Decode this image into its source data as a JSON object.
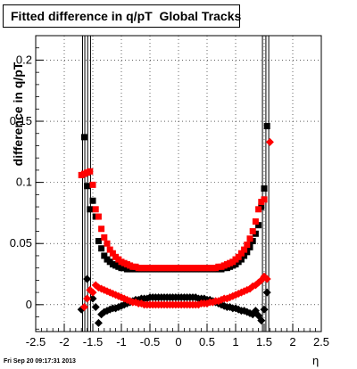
{
  "chart_data": {
    "type": "scatter",
    "title": "Fitted difference in q/pT  Global Tracks",
    "xlabel": "η",
    "ylabel": "difference in q/pT",
    "xlim": [
      -2.5,
      2.5
    ],
    "ylim": [
      -0.022,
      0.22
    ],
    "xticks": [
      "-2.5",
      "-2",
      "-1.5",
      "-1",
      "-0.5",
      "0",
      "0.5",
      "1",
      "1.5",
      "2",
      "2.5"
    ],
    "yticks": [
      "0",
      "0.05",
      "0.1",
      "0.15",
      "0.2"
    ],
    "grid": true,
    "series": [
      {
        "marker": "square",
        "color": "#000000",
        "points": [
          [
            -1.65,
            0.137
          ],
          [
            -1.6,
            0.097
          ],
          [
            -1.55,
            0.078
          ],
          [
            -1.5,
            0.085
          ],
          [
            -1.45,
            0.072
          ],
          [
            -1.4,
            0.052
          ],
          [
            -1.35,
            0.046
          ],
          [
            -1.3,
            0.04
          ],
          [
            -1.25,
            0.037
          ],
          [
            -1.2,
            0.035
          ],
          [
            -1.15,
            0.033
          ],
          [
            -1.1,
            0.032
          ],
          [
            -1.05,
            0.031
          ],
          [
            -1.0,
            0.03
          ],
          [
            -0.95,
            0.03
          ],
          [
            -0.9,
            0.029
          ],
          [
            -0.85,
            0.029
          ],
          [
            -0.8,
            0.029
          ],
          [
            -0.75,
            0.029
          ],
          [
            -0.7,
            0.029
          ],
          [
            -0.65,
            0.029
          ],
          [
            -0.6,
            0.029
          ],
          [
            -0.55,
            0.029
          ],
          [
            -0.5,
            0.029
          ],
          [
            -0.45,
            0.029
          ],
          [
            -0.4,
            0.029
          ],
          [
            -0.35,
            0.029
          ],
          [
            -0.3,
            0.029
          ],
          [
            -0.25,
            0.029
          ],
          [
            -0.2,
            0.029
          ],
          [
            -0.15,
            0.029
          ],
          [
            -0.1,
            0.029
          ],
          [
            -0.05,
            0.029
          ],
          [
            0.0,
            0.029
          ],
          [
            0.05,
            0.029
          ],
          [
            0.1,
            0.029
          ],
          [
            0.15,
            0.029
          ],
          [
            0.2,
            0.029
          ],
          [
            0.25,
            0.029
          ],
          [
            0.3,
            0.029
          ],
          [
            0.35,
            0.029
          ],
          [
            0.4,
            0.029
          ],
          [
            0.45,
            0.029
          ],
          [
            0.5,
            0.029
          ],
          [
            0.55,
            0.029
          ],
          [
            0.6,
            0.029
          ],
          [
            0.65,
            0.029
          ],
          [
            0.7,
            0.029
          ],
          [
            0.75,
            0.029
          ],
          [
            0.8,
            0.03
          ],
          [
            0.85,
            0.03
          ],
          [
            0.9,
            0.031
          ],
          [
            0.95,
            0.032
          ],
          [
            1.0,
            0.033
          ],
          [
            1.05,
            0.035
          ],
          [
            1.1,
            0.037
          ],
          [
            1.15,
            0.04
          ],
          [
            1.2,
            0.043
          ],
          [
            1.25,
            0.047
          ],
          [
            1.3,
            0.052
          ],
          [
            1.35,
            0.058
          ],
          [
            1.4,
            0.065
          ],
          [
            1.45,
            0.08
          ],
          [
            1.5,
            0.095
          ],
          [
            1.55,
            0.146
          ]
        ]
      },
      {
        "marker": "square",
        "color": "#ff0000",
        "points": [
          [
            -1.7,
            0.106
          ],
          [
            -1.65,
            0.107
          ],
          [
            -1.6,
            0.108
          ],
          [
            -1.55,
            0.109
          ],
          [
            -1.5,
            0.098
          ],
          [
            -1.45,
            0.078
          ],
          [
            -1.4,
            0.072
          ],
          [
            -1.35,
            0.062
          ],
          [
            -1.3,
            0.055
          ],
          [
            -1.25,
            0.05
          ],
          [
            -1.2,
            0.045
          ],
          [
            -1.15,
            0.042
          ],
          [
            -1.1,
            0.039
          ],
          [
            -1.05,
            0.037
          ],
          [
            -1.0,
            0.035
          ],
          [
            -0.95,
            0.034
          ],
          [
            -0.9,
            0.033
          ],
          [
            -0.85,
            0.032
          ],
          [
            -0.8,
            0.031
          ],
          [
            -0.75,
            0.031
          ],
          [
            -0.7,
            0.03
          ],
          [
            -0.65,
            0.03
          ],
          [
            -0.6,
            0.03
          ],
          [
            -0.55,
            0.03
          ],
          [
            -0.5,
            0.03
          ],
          [
            -0.45,
            0.03
          ],
          [
            -0.4,
            0.03
          ],
          [
            -0.35,
            0.03
          ],
          [
            -0.3,
            0.03
          ],
          [
            -0.25,
            0.03
          ],
          [
            -0.2,
            0.03
          ],
          [
            -0.15,
            0.03
          ],
          [
            -0.1,
            0.03
          ],
          [
            -0.05,
            0.03
          ],
          [
            0.0,
            0.03
          ],
          [
            0.05,
            0.03
          ],
          [
            0.1,
            0.03
          ],
          [
            0.15,
            0.03
          ],
          [
            0.2,
            0.03
          ],
          [
            0.25,
            0.03
          ],
          [
            0.3,
            0.03
          ],
          [
            0.35,
            0.03
          ],
          [
            0.4,
            0.03
          ],
          [
            0.45,
            0.03
          ],
          [
            0.5,
            0.03
          ],
          [
            0.55,
            0.03
          ],
          [
            0.6,
            0.03
          ],
          [
            0.65,
            0.03
          ],
          [
            0.7,
            0.031
          ],
          [
            0.75,
            0.031
          ],
          [
            0.8,
            0.032
          ],
          [
            0.85,
            0.033
          ],
          [
            0.9,
            0.034
          ],
          [
            0.95,
            0.035
          ],
          [
            1.0,
            0.037
          ],
          [
            1.05,
            0.039
          ],
          [
            1.1,
            0.042
          ],
          [
            1.15,
            0.045
          ],
          [
            1.2,
            0.049
          ],
          [
            1.25,
            0.054
          ],
          [
            1.3,
            0.06
          ],
          [
            1.35,
            0.068
          ],
          [
            1.4,
            0.078
          ],
          [
            1.45,
            0.084
          ],
          [
            1.5,
            0.086
          ]
        ]
      },
      {
        "marker": "diamond",
        "color": "#000000",
        "points": [
          [
            -1.7,
            -0.004
          ],
          [
            -1.6,
            0.021
          ],
          [
            -1.5,
            0.005
          ],
          [
            -1.45,
            -0.002
          ],
          [
            -1.4,
            -0.015
          ],
          [
            -1.35,
            -0.008
          ],
          [
            -1.3,
            -0.006
          ],
          [
            -1.25,
            -0.005
          ],
          [
            -1.2,
            -0.004
          ],
          [
            -1.15,
            -0.003
          ],
          [
            -1.1,
            -0.003
          ],
          [
            -1.05,
            -0.002
          ],
          [
            -1.0,
            -0.001
          ],
          [
            -0.95,
            0.0
          ],
          [
            -0.9,
            0.001
          ],
          [
            -0.85,
            0.002
          ],
          [
            -0.8,
            0.003
          ],
          [
            -0.75,
            0.004
          ],
          [
            -0.7,
            0.004
          ],
          [
            -0.65,
            0.005
          ],
          [
            -0.6,
            0.005
          ],
          [
            -0.55,
            0.005
          ],
          [
            -0.5,
            0.006
          ],
          [
            -0.45,
            0.006
          ],
          [
            -0.4,
            0.006
          ],
          [
            -0.35,
            0.006
          ],
          [
            -0.3,
            0.006
          ],
          [
            -0.25,
            0.006
          ],
          [
            -0.2,
            0.006
          ],
          [
            -0.15,
            0.006
          ],
          [
            -0.1,
            0.006
          ],
          [
            -0.05,
            0.006
          ],
          [
            0.0,
            0.006
          ],
          [
            0.05,
            0.006
          ],
          [
            0.1,
            0.006
          ],
          [
            0.15,
            0.006
          ],
          [
            0.2,
            0.006
          ],
          [
            0.25,
            0.006
          ],
          [
            0.3,
            0.006
          ],
          [
            0.35,
            0.005
          ],
          [
            0.4,
            0.005
          ],
          [
            0.45,
            0.005
          ],
          [
            0.5,
            0.004
          ],
          [
            0.55,
            0.004
          ],
          [
            0.6,
            0.003
          ],
          [
            0.65,
            0.002
          ],
          [
            0.7,
            0.001
          ],
          [
            0.75,
            0.0
          ],
          [
            0.8,
            -0.001
          ],
          [
            0.85,
            -0.002
          ],
          [
            0.9,
            -0.002
          ],
          [
            0.95,
            -0.003
          ],
          [
            1.0,
            -0.003
          ],
          [
            1.05,
            -0.004
          ],
          [
            1.1,
            -0.005
          ],
          [
            1.15,
            -0.005
          ],
          [
            1.2,
            -0.006
          ],
          [
            1.25,
            -0.007
          ],
          [
            1.3,
            -0.008
          ],
          [
            1.35,
            -0.005
          ],
          [
            1.4,
            -0.009
          ],
          [
            1.45,
            -0.013
          ],
          [
            1.5,
            -0.004
          ],
          [
            1.55,
            0.01
          ]
        ]
      },
      {
        "marker": "diamond",
        "color": "#ff0000",
        "points": [
          [
            -1.65,
            -0.002
          ],
          [
            -1.6,
            0.005
          ],
          [
            -1.55,
            0.012
          ],
          [
            -1.5,
            0.01
          ],
          [
            -1.45,
            0.016
          ],
          [
            -1.4,
            0.014
          ],
          [
            -1.35,
            0.013
          ],
          [
            -1.3,
            0.012
          ],
          [
            -1.25,
            0.011
          ],
          [
            -1.2,
            0.01
          ],
          [
            -1.15,
            0.009
          ],
          [
            -1.1,
            0.008
          ],
          [
            -1.05,
            0.007
          ],
          [
            -1.0,
            0.006
          ],
          [
            -0.95,
            0.005
          ],
          [
            -0.9,
            0.004
          ],
          [
            -0.85,
            0.003
          ],
          [
            -0.8,
            0.002
          ],
          [
            -0.75,
            0.002
          ],
          [
            -0.7,
            0.001
          ],
          [
            -0.65,
            0.001
          ],
          [
            -0.6,
            0.0
          ],
          [
            -0.55,
            0.0
          ],
          [
            -0.5,
            0.0
          ],
          [
            -0.45,
            0.0
          ],
          [
            -0.4,
            0.0
          ],
          [
            -0.35,
            0.0
          ],
          [
            -0.3,
            0.0
          ],
          [
            -0.25,
            0.0
          ],
          [
            -0.2,
            0.0
          ],
          [
            -0.15,
            0.0
          ],
          [
            -0.1,
            0.0
          ],
          [
            -0.05,
            0.0
          ],
          [
            0.0,
            0.0
          ],
          [
            0.05,
            0.0
          ],
          [
            0.1,
            0.0
          ],
          [
            0.15,
            0.0
          ],
          [
            0.2,
            0.0
          ],
          [
            0.25,
            0.0
          ],
          [
            0.3,
            0.0
          ],
          [
            0.35,
            0.0
          ],
          [
            0.4,
            0.001
          ],
          [
            0.45,
            0.001
          ],
          [
            0.5,
            0.001
          ],
          [
            0.55,
            0.002
          ],
          [
            0.6,
            0.002
          ],
          [
            0.65,
            0.003
          ],
          [
            0.7,
            0.003
          ],
          [
            0.75,
            0.004
          ],
          [
            0.8,
            0.005
          ],
          [
            0.85,
            0.005
          ],
          [
            0.9,
            0.006
          ],
          [
            0.95,
            0.007
          ],
          [
            1.0,
            0.008
          ],
          [
            1.05,
            0.009
          ],
          [
            1.1,
            0.01
          ],
          [
            1.15,
            0.011
          ],
          [
            1.2,
            0.012
          ],
          [
            1.25,
            0.013
          ],
          [
            1.3,
            0.015
          ],
          [
            1.35,
            0.016
          ],
          [
            1.4,
            0.018
          ],
          [
            1.45,
            0.02
          ],
          [
            1.5,
            0.023
          ],
          [
            1.55,
            0.021
          ],
          [
            1.6,
            0.133
          ]
        ]
      }
    ],
    "error_bar_columns_x": [
      -1.68,
      -1.64,
      -1.59,
      -1.54,
      1.47,
      1.53,
      1.58
    ]
  },
  "footer_text": "Fri Sep 20 09:17:31 2013"
}
